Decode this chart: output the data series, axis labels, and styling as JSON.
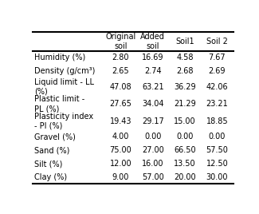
{
  "col_headers": [
    "Original\nsoil",
    "Added\nsoil",
    "Soil1",
    "Soil 2"
  ],
  "row_labels": [
    "Humidity (%)",
    "Density (g/cm³)",
    "Liquid limit - LL\n(%)",
    "Plastic limit -\nPL (%)",
    "Plasticity index\n- PI (%)",
    "Gravel (%)",
    "Sand (%)",
    "Silt (%)",
    "Clay (%)"
  ],
  "table_data": [
    [
      "2.80",
      "16.69",
      "4.58",
      "7.67"
    ],
    [
      "2.65",
      "2.74",
      "2.68",
      "2.69"
    ],
    [
      "47.08",
      "63.21",
      "36.29",
      "42.06"
    ],
    [
      "27.65",
      "34.04",
      "21.29",
      "23.21"
    ],
    [
      "19.43",
      "29.17",
      "15.00",
      "18.85"
    ],
    [
      "4.00",
      "0.00",
      "0.00",
      "0.00"
    ],
    [
      "75.00",
      "27.00",
      "66.50",
      "57.50"
    ],
    [
      "12.00",
      "16.00",
      "13.50",
      "12.50"
    ],
    [
      "9.00",
      "57.00",
      "20.00",
      "30.00"
    ]
  ],
  "background_color": "#ffffff",
  "font_size": 7.0,
  "header_font_size": 7.0
}
